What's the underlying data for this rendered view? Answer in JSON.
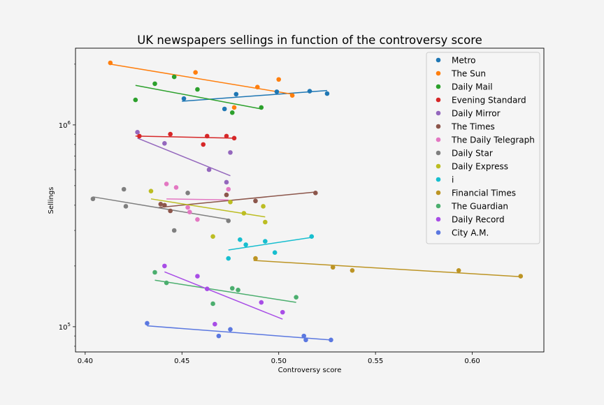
{
  "chart_data": {
    "type": "scatter",
    "title": "UK newspapers sellings in function of the controversy score",
    "xlabel": "Controversy score",
    "ylabel": "Sellings",
    "xlim": [
      0.395,
      0.637
    ],
    "ylim": [
      75000,
      2400000
    ],
    "yscale": "log",
    "xticks": [
      0.4,
      0.45,
      0.5,
      0.55,
      0.6
    ],
    "xtick_labels": [
      "0.40",
      "0.45",
      "0.50",
      "0.55",
      "0.60"
    ],
    "yticks": [
      100000,
      1000000
    ],
    "ytick_labels": [
      "10^5",
      "10^6"
    ],
    "grid": false,
    "legend_position": "top-right",
    "trend_lines": true,
    "series": [
      {
        "name": "Metro",
        "color": "#1f77b4",
        "points": [
          [
            0.451,
            1350000.0
          ],
          [
            0.472,
            1200000.0
          ],
          [
            0.478,
            1420000.0
          ],
          [
            0.499,
            1460000.0
          ],
          [
            0.516,
            1470000.0
          ],
          [
            0.525,
            1430000.0
          ]
        ],
        "trend": [
          [
            0.45,
            1310000.0
          ],
          [
            0.525,
            1480000.0
          ]
        ]
      },
      {
        "name": "The Sun",
        "color": "#ff7f0e",
        "points": [
          [
            0.413,
            2030000.0
          ],
          [
            0.457,
            1820000.0
          ],
          [
            0.477,
            1220000.0
          ],
          [
            0.489,
            1540000.0
          ],
          [
            0.5,
            1680000.0
          ],
          [
            0.507,
            1400000.0
          ]
        ],
        "trend": [
          [
            0.413,
            2000000.0
          ],
          [
            0.507,
            1420000.0
          ]
        ]
      },
      {
        "name": "Daily Mail",
        "color": "#2ca02c",
        "points": [
          [
            0.426,
            1330000.0
          ],
          [
            0.436,
            1600000.0
          ],
          [
            0.446,
            1730000.0
          ],
          [
            0.458,
            1500000.0
          ],
          [
            0.476,
            1150000.0
          ],
          [
            0.491,
            1220000.0
          ]
        ],
        "trend": [
          [
            0.426,
            1570000.0
          ],
          [
            0.491,
            1200000.0
          ]
        ]
      },
      {
        "name": "Evening Standard",
        "color": "#d62728",
        "points": [
          [
            0.428,
            880000.0
          ],
          [
            0.444,
            900000.0
          ],
          [
            0.461,
            800000.0
          ],
          [
            0.463,
            880000.0
          ],
          [
            0.473,
            880000.0
          ],
          [
            0.477,
            860000.0
          ]
        ],
        "trend": [
          [
            0.426,
            880000.0
          ],
          [
            0.477,
            860000.0
          ]
        ]
      },
      {
        "name": "Daily Mirror",
        "color": "#9467bd",
        "points": [
          [
            0.427,
            920000.0
          ],
          [
            0.441,
            810000.0
          ],
          [
            0.464,
            600000.0
          ],
          [
            0.473,
            520000.0
          ],
          [
            0.475,
            730000.0
          ]
        ],
        "trend": [
          [
            0.427,
            860000.0
          ],
          [
            0.475,
            560000.0
          ]
        ]
      },
      {
        "name": "The Times",
        "color": "#8c564b",
        "points": [
          [
            0.439,
            405000.0
          ],
          [
            0.441,
            400000.0
          ],
          [
            0.444,
            375000.0
          ],
          [
            0.473,
            450000.0
          ],
          [
            0.488,
            420000.0
          ],
          [
            0.519,
            460000.0
          ]
        ],
        "trend": [
          [
            0.438,
            390000.0
          ],
          [
            0.519,
            465000.0
          ]
        ]
      },
      {
        "name": "The Daily Telegraph",
        "color": "#e377c2",
        "points": [
          [
            0.442,
            510000.0
          ],
          [
            0.447,
            490000.0
          ],
          [
            0.453,
            390000.0
          ],
          [
            0.454,
            370000.0
          ],
          [
            0.458,
            340000.0
          ],
          [
            0.474,
            480000.0
          ]
        ],
        "trend": [
          [
            0.442,
            430000.0
          ],
          [
            0.474,
            425000.0
          ]
        ]
      },
      {
        "name": "Daily Star",
        "color": "#7f7f7f",
        "points": [
          [
            0.404,
            430000.0
          ],
          [
            0.42,
            480000.0
          ],
          [
            0.421,
            395000.0
          ],
          [
            0.446,
            300000.0
          ],
          [
            0.453,
            460000.0
          ],
          [
            0.474,
            335000.0
          ]
        ],
        "trend": [
          [
            0.404,
            440000.0
          ],
          [
            0.474,
            340000.0
          ]
        ]
      },
      {
        "name": "Daily Express",
        "color": "#bcbd22",
        "points": [
          [
            0.434,
            470000.0
          ],
          [
            0.466,
            280000.0
          ],
          [
            0.475,
            415000.0
          ],
          [
            0.482,
            365000.0
          ],
          [
            0.492,
            395000.0
          ],
          [
            0.493,
            330000.0
          ]
        ],
        "trend": [
          [
            0.434,
            430000.0
          ],
          [
            0.493,
            350000.0
          ]
        ]
      },
      {
        "name": "i",
        "color": "#17becf",
        "points": [
          [
            0.474,
            218000.0
          ],
          [
            0.48,
            270000.0
          ],
          [
            0.483,
            255000.0
          ],
          [
            0.493,
            265000.0
          ],
          [
            0.498,
            233000.0
          ],
          [
            0.517,
            280000.0
          ]
        ],
        "trend": [
          [
            0.474,
            240000.0
          ],
          [
            0.517,
            277000.0
          ]
        ]
      },
      {
        "name": "Financial Times",
        "color": "#bc9424",
        "points": [
          [
            0.488,
            218000.0
          ],
          [
            0.528,
            197000.0
          ],
          [
            0.538,
            190000.0
          ],
          [
            0.593,
            190000.0
          ],
          [
            0.625,
            178000.0
          ]
        ],
        "trend": [
          [
            0.487,
            213000.0
          ],
          [
            0.625,
            177000.0
          ]
        ]
      },
      {
        "name": "The Guardian",
        "color": "#4bae6e",
        "points": [
          [
            0.436,
            186000.0
          ],
          [
            0.442,
            165000.0
          ],
          [
            0.466,
            130000.0
          ],
          [
            0.476,
            155000.0
          ],
          [
            0.479,
            152000.0
          ],
          [
            0.509,
            140000.0
          ]
        ],
        "trend": [
          [
            0.436,
            170000.0
          ],
          [
            0.509,
            132000.0
          ]
        ]
      },
      {
        "name": "Daily Record",
        "color": "#a84de6",
        "points": [
          [
            0.441,
            200000.0
          ],
          [
            0.458,
            178000.0
          ],
          [
            0.463,
            154000.0
          ],
          [
            0.467,
            103000.0
          ],
          [
            0.491,
            132000.0
          ],
          [
            0.502,
            118000.0
          ]
        ],
        "trend": [
          [
            0.441,
            187000.0
          ],
          [
            0.502,
            109000.0
          ]
        ]
      },
      {
        "name": "City A.M.",
        "color": "#5b78e0",
        "points": [
          [
            0.432,
            104000.0
          ],
          [
            0.469,
            90000.0
          ],
          [
            0.475,
            97000.0
          ],
          [
            0.513,
            90000.0
          ],
          [
            0.514,
            86000.0
          ],
          [
            0.527,
            86000.0
          ]
        ],
        "trend": [
          [
            0.432,
            101000.0
          ],
          [
            0.527,
            86000.0
          ]
        ]
      }
    ]
  }
}
